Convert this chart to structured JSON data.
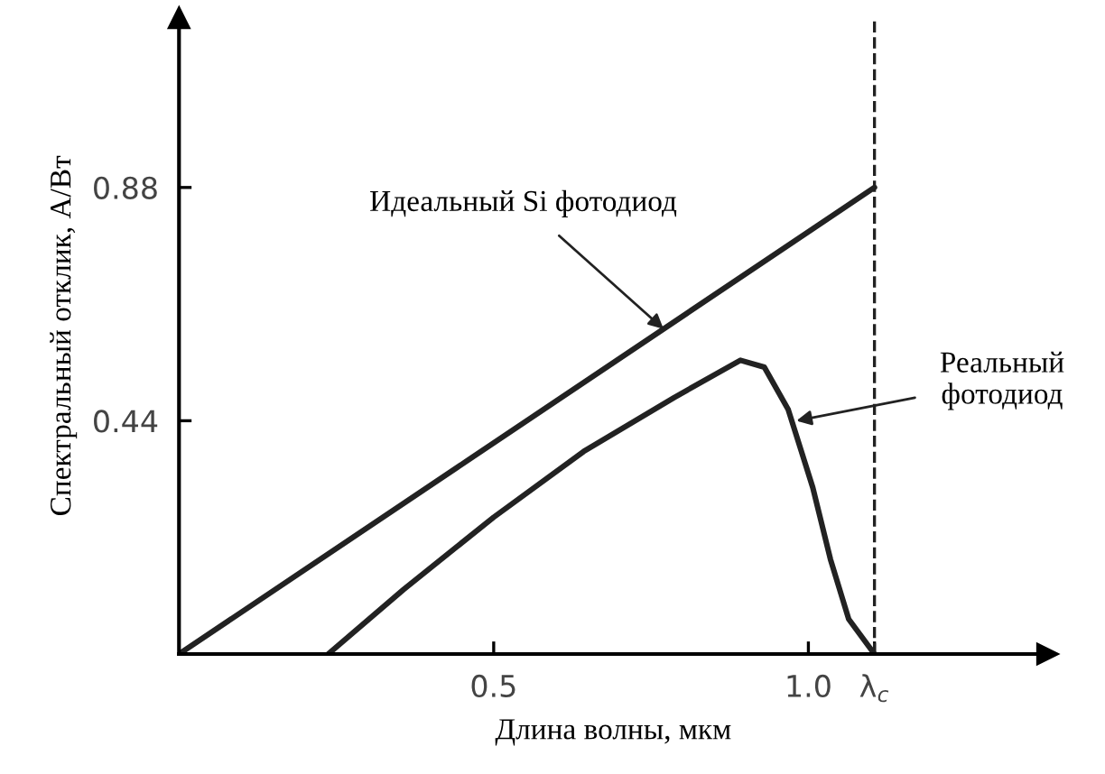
{
  "chart_data": {
    "type": "line",
    "xlabel": "Длина волны, мкм",
    "ylabel": "Спектральный отклик, А/Вт",
    "xlim": [
      0,
      1.38
    ],
    "ylim": [
      0,
      1.2
    ],
    "xticks": [
      0.5,
      {
        "value": 1.0,
        "label": "1.0"
      },
      {
        "value": 1.105,
        "label": "λ$_{c}$"
      }
    ],
    "yticks": [
      0.44,
      0.88
    ],
    "grid": false,
    "legend": false,
    "marker": "none",
    "series": [
      {
        "color": "#222222",
        "x": [
          0,
          1.105
        ],
        "values": [
          0,
          0.88
        ]
      },
      {
        "color": "#222222",
        "x": [
          0.237,
          0.357,
          0.5,
          0.643,
          0.787,
          0.892,
          0.93,
          0.968,
          1.007,
          1.035,
          1.064,
          1.105
        ],
        "values": [
          0,
          0.122,
          0.258,
          0.382,
          0.484,
          0.554,
          0.541,
          0.461,
          0.314,
          0.179,
          0.066,
          0
        ]
      }
    ],
    "ref_lines": [
      {
        "axis": "x",
        "value": 1.105,
        "color": "#222222",
        "line_style": "dashed"
      }
    ],
    "annotations": [
      {
        "text": "Идеальный Si фотодиод",
        "x": 0.77,
        "y": 0.613
      },
      {
        "text": "Реальный\nфотодиод",
        "x": 0.981,
        "y": 0.44
      }
    ]
  }
}
